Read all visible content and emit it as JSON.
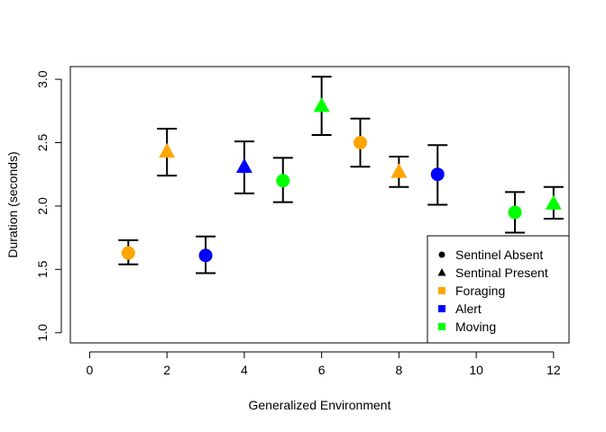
{
  "chart_data": {
    "type": "scatter",
    "title": "",
    "xlabel": "Generalized Environment",
    "ylabel": "Duration (seconds)",
    "xlim": [
      -0.5,
      12.4
    ],
    "ylim": [
      0.92,
      3.1
    ],
    "xticks": [
      0,
      2,
      4,
      6,
      8,
      10,
      12
    ],
    "yticks": [
      1.0,
      1.5,
      2.0,
      2.5,
      3.0
    ],
    "xtick_labels": [
      "0",
      "2",
      "4",
      "6",
      "8",
      "10",
      "12"
    ],
    "ytick_labels": [
      "1.0",
      "1.5",
      "2.0",
      "2.5",
      "3.0"
    ],
    "grid": false,
    "legend_position": "bottom-right",
    "colors": {
      "Foraging": "#FFA500",
      "Alert": "#0000FF",
      "Moving": "#00FF00"
    },
    "points": [
      {
        "x": 1,
        "y": 1.63,
        "lower": 1.54,
        "upper": 1.73,
        "sentinel": "Absent",
        "behavior": "Foraging"
      },
      {
        "x": 2,
        "y": 2.43,
        "lower": 2.24,
        "upper": 2.61,
        "sentinel": "Present",
        "behavior": "Foraging"
      },
      {
        "x": 3,
        "y": 1.61,
        "lower": 1.47,
        "upper": 1.76,
        "sentinel": "Absent",
        "behavior": "Alert"
      },
      {
        "x": 4,
        "y": 2.31,
        "lower": 2.1,
        "upper": 2.51,
        "sentinel": "Present",
        "behavior": "Alert"
      },
      {
        "x": 5,
        "y": 2.2,
        "lower": 2.03,
        "upper": 2.38,
        "sentinel": "Absent",
        "behavior": "Moving"
      },
      {
        "x": 6,
        "y": 2.79,
        "lower": 2.56,
        "upper": 3.02,
        "sentinel": "Present",
        "behavior": "Moving"
      },
      {
        "x": 7,
        "y": 2.5,
        "lower": 2.31,
        "upper": 2.69,
        "sentinel": "Absent",
        "behavior": "Foraging"
      },
      {
        "x": 8,
        "y": 2.27,
        "lower": 2.15,
        "upper": 2.39,
        "sentinel": "Present",
        "behavior": "Foraging"
      },
      {
        "x": 9,
        "y": 2.25,
        "lower": 2.01,
        "upper": 2.48,
        "sentinel": "Absent",
        "behavior": "Alert"
      },
      {
        "x": 11,
        "y": 1.95,
        "lower": 1.79,
        "upper": 2.11,
        "sentinel": "Absent",
        "behavior": "Moving"
      },
      {
        "x": 12,
        "y": 2.02,
        "lower": 1.9,
        "upper": 2.15,
        "sentinel": "Present",
        "behavior": "Moving"
      }
    ],
    "legend": [
      {
        "label": "Sentinel Absent",
        "marker": "circle",
        "color": "#000000"
      },
      {
        "label": "Sentinal Present",
        "marker": "triangle",
        "color": "#000000"
      },
      {
        "label": "Foraging",
        "marker": "square",
        "color": "#FFA500"
      },
      {
        "label": "Alert",
        "marker": "square",
        "color": "#0000FF"
      },
      {
        "label": "Moving",
        "marker": "square",
        "color": "#00FF00"
      }
    ]
  }
}
